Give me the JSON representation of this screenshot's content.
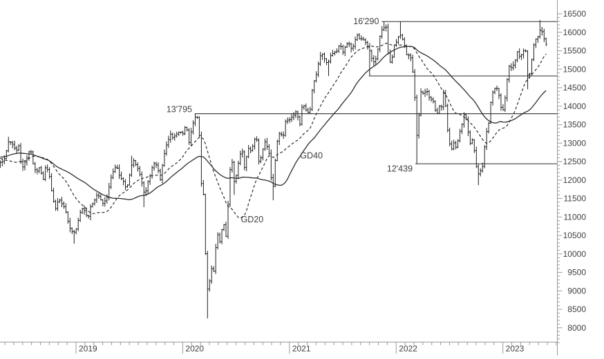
{
  "chart_data": {
    "type": "ohlc",
    "description": "Weekly OHLC bar chart with GD20/GD40 moving averages and horizontal support/resistance levels",
    "y_axis": {
      "side": "right",
      "labels": [
        16500,
        16000,
        15500,
        15000,
        14500,
        14000,
        13500,
        13000,
        12500,
        12000,
        11500,
        11000,
        10500,
        10000,
        9500,
        9000,
        8500,
        8000
      ],
      "label_step": 500,
      "minor_step": 100,
      "value_top": 16500,
      "value_bottom": 8000
    },
    "x_axis": {
      "labels": [
        "2019",
        "2020",
        "2021",
        "2022",
        "2023"
      ],
      "t_start": 2018.29,
      "t_end": 2023.42,
      "minor_tick": "monthly"
    },
    "levels": [
      {
        "value": 16290,
        "label": "16'290",
        "t_start": 2021.865,
        "label_pos": "center"
      },
      {
        "value": 14818,
        "label": "",
        "t_start": 2021.745,
        "label_pos": "none"
      },
      {
        "value": 13795,
        "label": "13'795",
        "t_start": 2020.114,
        "label_pos": "above"
      },
      {
        "value": 12439,
        "label": "12'439",
        "t_start": 2022.18,
        "label_pos": "below"
      }
    ],
    "ma_annotations": [
      {
        "label": "GD40",
        "t": 2021.1,
        "value": 12660,
        "style": "solid"
      },
      {
        "label": "GD20",
        "t": 2020.545,
        "value": 10930,
        "style": "dashed"
      }
    ],
    "colors": {
      "bars": "#1d1d1d",
      "ma_lines": "#2b2b2b",
      "level_lines": "#2b2b2b",
      "axis": "#9a9a9a",
      "text": "#3f3f3f",
      "background": "#ffffff"
    },
    "series": {
      "weekly_close_anchors": [
        [
          2017.54,
          12350
        ],
        [
          2017.62,
          12250
        ],
        [
          2017.71,
          12500
        ],
        [
          2017.79,
          12950
        ],
        [
          2017.87,
          13100
        ],
        [
          2017.96,
          13000
        ],
        [
          2018.02,
          13340
        ],
        [
          2018.08,
          12620
        ],
        [
          2018.14,
          12100
        ],
        [
          2018.19,
          11950
        ],
        [
          2018.25,
          12350
        ],
        [
          2018.29,
          12460
        ],
        [
          2018.33,
          12580
        ],
        [
          2018.37,
          13070
        ],
        [
          2018.41,
          12940
        ],
        [
          2018.44,
          12770
        ],
        [
          2018.46,
          13010
        ],
        [
          2018.49,
          12310
        ],
        [
          2018.53,
          12540
        ],
        [
          2018.57,
          12860
        ],
        [
          2018.6,
          12420
        ],
        [
          2018.63,
          12210
        ],
        [
          2018.66,
          12360
        ],
        [
          2018.69,
          11960
        ],
        [
          2018.72,
          12430
        ],
        [
          2018.75,
          12110
        ],
        [
          2018.78,
          11520
        ],
        [
          2018.81,
          11200
        ],
        [
          2018.84,
          11520
        ],
        [
          2018.87,
          11340
        ],
        [
          2018.9,
          11190
        ],
        [
          2018.93,
          10790
        ],
        [
          2018.96,
          10630
        ],
        [
          2018.99,
          10560
        ],
        [
          2019.02,
          10890
        ],
        [
          2019.05,
          11210
        ],
        [
          2019.08,
          11180
        ],
        [
          2019.11,
          10910
        ],
        [
          2019.14,
          11300
        ],
        [
          2019.17,
          11460
        ],
        [
          2019.2,
          11600
        ],
        [
          2019.23,
          11460
        ],
        [
          2019.26,
          11360
        ],
        [
          2019.29,
          11530
        ],
        [
          2019.32,
          11990
        ],
        [
          2019.35,
          12220
        ],
        [
          2019.38,
          12410
        ],
        [
          2019.41,
          12060
        ],
        [
          2019.44,
          12010
        ],
        [
          2019.47,
          11730
        ],
        [
          2019.5,
          12100
        ],
        [
          2019.53,
          12570
        ],
        [
          2019.56,
          12420
        ],
        [
          2019.59,
          12260
        ],
        [
          2019.62,
          11870
        ],
        [
          2019.645,
          11560
        ],
        [
          2019.67,
          11940
        ],
        [
          2019.7,
          12190
        ],
        [
          2019.73,
          12470
        ],
        [
          2019.76,
          12380
        ],
        [
          2019.79,
          12010
        ],
        [
          2019.82,
          12630
        ],
        [
          2019.85,
          12960
        ],
        [
          2019.88,
          13240
        ],
        [
          2019.91,
          13160
        ],
        [
          2019.94,
          13240
        ],
        [
          2019.97,
          13320
        ],
        [
          2020.0,
          13220
        ],
        [
          2020.03,
          13520
        ],
        [
          2020.06,
          12980
        ],
        [
          2020.09,
          13510
        ],
        [
          2020.125,
          13744
        ],
        [
          2020.15,
          13580
        ],
        [
          2020.175,
          11890
        ],
        [
          2020.2,
          11540
        ],
        [
          2020.22,
          9230
        ],
        [
          2020.24,
          8930
        ],
        [
          2020.265,
          9630
        ],
        [
          2020.29,
          9530
        ],
        [
          2020.32,
          10560
        ],
        [
          2020.35,
          10340
        ],
        [
          2020.38,
          10900
        ],
        [
          2020.405,
          10470
        ],
        [
          2020.43,
          11590
        ],
        [
          2020.455,
          12850
        ],
        [
          2020.475,
          11950
        ],
        [
          2020.5,
          12090
        ],
        [
          2020.53,
          12630
        ],
        [
          2020.555,
          12840
        ],
        [
          2020.58,
          12310
        ],
        [
          2020.61,
          12900
        ],
        [
          2020.64,
          12770
        ],
        [
          2020.665,
          13030
        ],
        [
          2020.69,
          13200
        ],
        [
          2020.715,
          12470
        ],
        [
          2020.74,
          12690
        ],
        [
          2020.765,
          13050
        ],
        [
          2020.79,
          12910
        ],
        [
          2020.815,
          12650
        ],
        [
          2020.84,
          11560
        ],
        [
          2020.865,
          12480
        ],
        [
          2020.89,
          13140
        ],
        [
          2020.915,
          13330
        ],
        [
          2020.94,
          13110
        ],
        [
          2020.965,
          13630
        ],
        [
          2020.99,
          13590
        ],
        [
          2021.02,
          13720
        ],
        [
          2021.045,
          13790
        ],
        [
          2021.07,
          13870
        ],
        [
          2021.095,
          13430
        ],
        [
          2021.12,
          14050
        ],
        [
          2021.145,
          13990
        ],
        [
          2021.17,
          13790
        ],
        [
          2021.195,
          13920
        ],
        [
          2021.22,
          14620
        ],
        [
          2021.245,
          14750
        ],
        [
          2021.27,
          15110
        ],
        [
          2021.3,
          15460
        ],
        [
          2021.33,
          15280
        ],
        [
          2021.36,
          15140
        ],
        [
          2021.39,
          15400
        ],
        [
          2021.42,
          15440
        ],
        [
          2021.45,
          15520
        ],
        [
          2021.475,
          15690
        ],
        [
          2021.5,
          15450
        ],
        [
          2021.53,
          15650
        ],
        [
          2021.555,
          15690
        ],
        [
          2021.58,
          15540
        ],
        [
          2021.605,
          15670
        ],
        [
          2021.63,
          15980
        ],
        [
          2021.655,
          15810
        ],
        [
          2021.68,
          15850
        ],
        [
          2021.705,
          15780
        ],
        [
          2021.73,
          15610
        ],
        [
          2021.755,
          15490
        ],
        [
          2021.78,
          15160
        ],
        [
          2021.805,
          15210
        ],
        [
          2021.83,
          15590
        ],
        [
          2021.855,
          16050
        ],
        [
          2021.88,
          16090
        ],
        [
          2021.905,
          16160
        ],
        [
          2021.93,
          15260
        ],
        [
          2021.955,
          15170
        ],
        [
          2021.98,
          15620
        ],
        [
          2022.005,
          15760
        ],
        [
          2022.03,
          15950
        ],
        [
          2022.055,
          15880
        ],
        [
          2022.08,
          15600
        ],
        [
          2022.105,
          15320
        ],
        [
          2022.13,
          15430
        ],
        [
          2022.15,
          15040
        ],
        [
          2022.17,
          14570
        ],
        [
          2022.19,
          13100
        ],
        [
          2022.21,
          13630
        ],
        [
          2022.23,
          14410
        ],
        [
          2022.255,
          14310
        ],
        [
          2022.28,
          14450
        ],
        [
          2022.305,
          14280
        ],
        [
          2022.33,
          14160
        ],
        [
          2022.355,
          14100
        ],
        [
          2022.38,
          13670
        ],
        [
          2022.4,
          14030
        ],
        [
          2022.425,
          14000
        ],
        [
          2022.45,
          14460
        ],
        [
          2022.47,
          13760
        ],
        [
          2022.49,
          13130
        ],
        [
          2022.515,
          12810
        ],
        [
          2022.54,
          13020
        ],
        [
          2022.565,
          12870
        ],
        [
          2022.59,
          13250
        ],
        [
          2022.615,
          13480
        ],
        [
          2022.64,
          13800
        ],
        [
          2022.665,
          13540
        ],
        [
          2022.69,
          12970
        ],
        [
          2022.715,
          13090
        ],
        [
          2022.735,
          12740
        ],
        [
          2022.755,
          12280
        ],
        [
          2022.775,
          12110
        ],
        [
          2022.795,
          12270
        ],
        [
          2022.815,
          12440
        ],
        [
          2022.84,
          13240
        ],
        [
          2022.865,
          13460
        ],
        [
          2022.89,
          14230
        ],
        [
          2022.915,
          14430
        ],
        [
          2022.94,
          14530
        ],
        [
          2022.96,
          14370
        ],
        [
          2022.985,
          13890
        ],
        [
          2023.01,
          13940
        ],
        [
          2023.035,
          14610
        ],
        [
          2023.06,
          15090
        ],
        [
          2023.085,
          15040
        ],
        [
          2023.11,
          15150
        ],
        [
          2023.135,
          15480
        ],
        [
          2023.16,
          15310
        ],
        [
          2023.185,
          15480
        ],
        [
          2023.21,
          15580
        ],
        [
          2023.235,
          14770
        ],
        [
          2023.26,
          14960
        ],
        [
          2023.285,
          15630
        ],
        [
          2023.31,
          15810
        ],
        [
          2023.335,
          15880
        ],
        [
          2023.355,
          16150
        ],
        [
          2023.375,
          15950
        ],
        [
          2023.4,
          15700
        ],
        [
          2023.415,
          15660
        ]
      ],
      "extremes": [
        [
          2018.37,
          "h",
          13170
        ],
        [
          2018.99,
          "l",
          10279
        ],
        [
          2019.53,
          "h",
          12656
        ],
        [
          2019.635,
          "l",
          11266
        ],
        [
          2020.125,
          "h",
          13795
        ],
        [
          2020.24,
          "l",
          8255
        ],
        [
          2020.485,
          "l",
          11597
        ],
        [
          2020.84,
          "l",
          11450
        ],
        [
          2021.365,
          "l",
          14816
        ],
        [
          2021.755,
          "l",
          14818
        ],
        [
          2021.88,
          "h",
          16290
        ],
        [
          2022.035,
          "h",
          16285
        ],
        [
          2022.19,
          "l",
          12439
        ],
        [
          2022.775,
          "l",
          11862
        ],
        [
          2023.235,
          "l",
          14458
        ],
        [
          2023.355,
          "h",
          16330
        ]
      ],
      "ma_periods": {
        "gd20": 20,
        "gd40": 40
      }
    }
  }
}
